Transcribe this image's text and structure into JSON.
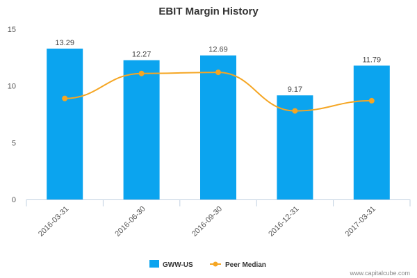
{
  "chart_data": {
    "type": "bar",
    "title": "EBIT Margin History",
    "categories": [
      "2016-03-31",
      "2016-06-30",
      "2016-09-30",
      "2016-12-31",
      "2017-03-31"
    ],
    "series": [
      {
        "name": "GWW-US",
        "type": "bar",
        "color": "#0ba4ef",
        "values": [
          13.29,
          12.27,
          12.69,
          9.17,
          11.79
        ],
        "data_labels": [
          "13.29",
          "12.27",
          "12.69",
          "9.17",
          "11.79"
        ]
      },
      {
        "name": "Peer Median",
        "type": "line",
        "color": "#f5a623",
        "values": [
          8.9,
          11.1,
          11.2,
          7.8,
          8.7
        ]
      }
    ],
    "ylim": [
      0,
      15
    ],
    "yticks": [
      "0",
      "5",
      "10",
      "15"
    ],
    "legend_position": "bottom-center",
    "grid": false
  },
  "credit": "www.capitalcube.com"
}
